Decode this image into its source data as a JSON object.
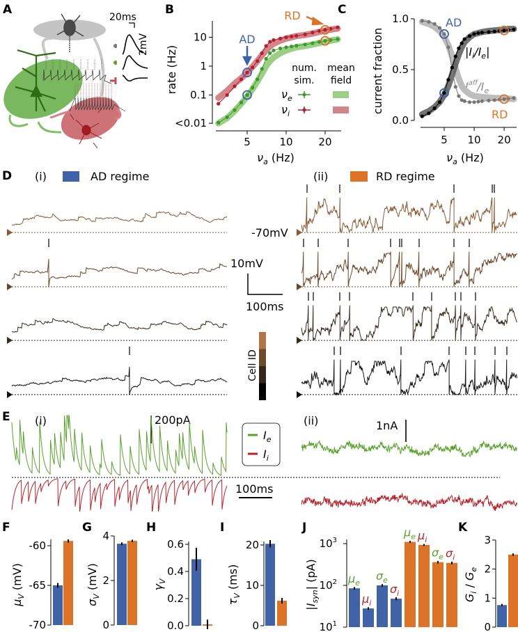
{
  "panel_labels": {
    "A": "A",
    "B": "B",
    "C": "C",
    "D": "D",
    "E": "E",
    "F": "F",
    "G": "G",
    "H": "H",
    "I": "I",
    "J": "J",
    "K": "K"
  },
  "colors": {
    "ad_blue": "#3f63a6",
    "rd_orange": "#dc7326",
    "exc_green": "#5aa02c",
    "inh_red": "#b5242c",
    "gray": "#999999"
  },
  "panel_a": {
    "scale_time": "20ms",
    "scale_volt": "2mV"
  },
  "panel_d": {
    "sub_i": "(i)",
    "sub_ii": "(ii)",
    "ad_label": "AD regime",
    "rd_label": "RD regime",
    "rest_label": "-70mV",
    "scale_volt": "10mV",
    "scale_time": "100ms",
    "cell_id_label": "Cell ID",
    "cell_colors": [
      "#b07848",
      "#6e4a2c",
      "#36271a",
      "#000000"
    ],
    "spike_times_ms": {
      "ad": [
        [],
        [
          106
        ],
        [],
        [
          338
        ]
      ],
      "rd": [
        [
          16,
          110,
          438,
          548,
          554
        ],
        [
          6,
          48,
          134,
          256,
          282,
          288,
          338,
          438,
          482
        ],
        [
          20,
          34,
          110,
          138,
          320,
          374,
          442,
          458,
          500
        ],
        [
          94,
          112,
          286,
          424,
          472,
          498,
          556,
          590
        ]
      ]
    }
  },
  "panel_e": {
    "sub_i": "(i)",
    "sub_ii": "(ii)",
    "scale_ad": "200pA",
    "scale_rd": "1nA",
    "scale_time": "100ms",
    "legend": [
      {
        "sym": "I",
        "sub": "e"
      },
      {
        "sym": "I",
        "sub": "i"
      }
    ]
  },
  "chart_data": [
    {
      "panel": "B",
      "type": "line",
      "xlabel": {
        "sym": "ν",
        "sub": "a",
        "rest": " (Hz)"
      },
      "ylabel": "rate (Hz)",
      "xscale": "log",
      "yscale": "log",
      "xticks": [
        5,
        10,
        20
      ],
      "xtick_labels": [
        "5",
        "10",
        "20"
      ],
      "yticks": [
        0.01,
        0.1,
        1,
        10
      ],
      "ytick_labels": [
        "<0.01",
        "0.1",
        "1",
        "10"
      ],
      "x": [
        3,
        3.5,
        4,
        4.5,
        5,
        5.5,
        6,
        6.5,
        7,
        7.5,
        8,
        9,
        10,
        11,
        12,
        14,
        16,
        18,
        20,
        22,
        25
      ],
      "series": [
        {
          "name": "ν_e num. sim.",
          "kind": "sim",
          "pop": "e",
          "values": [
            0.011,
            0.017,
            0.03,
            0.055,
            0.1,
            0.18,
            0.35,
            0.8,
            1.8,
            2.8,
            3.5,
            4.1,
            4.5,
            4.8,
            5.1,
            5.6,
            6.2,
            6.9,
            7.5,
            8.0,
            8.6
          ]
        },
        {
          "name": "ν_i num. sim.",
          "kind": "sim",
          "pop": "i",
          "values": [
            0.05,
            0.1,
            0.2,
            0.35,
            0.6,
            0.9,
            1.5,
            2.8,
            5.0,
            7.0,
            8.0,
            9.0,
            10.0,
            10.6,
            11.2,
            12.5,
            14.5,
            16.5,
            18.0,
            19.5,
            22.0
          ]
        },
        {
          "name": "ν_e mean field",
          "kind": "mf",
          "pop": "e",
          "values": [
            0.01,
            0.016,
            0.028,
            0.05,
            0.09,
            0.16,
            0.3,
            0.55,
            1.0,
            1.5,
            2.0,
            2.8,
            3.5,
            4.0,
            4.5,
            5.0,
            5.6,
            6.3,
            7.0,
            7.6,
            8.5
          ]
        },
        {
          "name": "ν_i mean field",
          "kind": "mf",
          "pop": "i",
          "values": [
            0.08,
            0.14,
            0.25,
            0.38,
            0.6,
            0.95,
            1.5,
            2.4,
            3.5,
            4.8,
            6.0,
            7.6,
            9.0,
            10.0,
            11.0,
            12.0,
            13.5,
            15.3,
            17.0,
            18.3,
            20.0
          ]
        }
      ],
      "legend": {
        "header_sim": "num.",
        "header_sim2": "sim.",
        "header_mf": "mean",
        "header_mf2": "field",
        "entries": [
          {
            "sym": "ν",
            "sub": "e"
          },
          {
            "sym": "ν",
            "sub": "i"
          }
        ]
      },
      "annotations": [
        {
          "text": "AD",
          "x": 5
        },
        {
          "text": "RD",
          "x": 20
        }
      ]
    },
    {
      "panel": "C",
      "type": "line",
      "xlabel": {
        "sym": "ν",
        "sub": "a",
        "rest": " (Hz)"
      },
      "ylabel": "current fraction",
      "xscale": "log",
      "ylim": [
        0,
        1
      ],
      "xticks": [
        5,
        10,
        20
      ],
      "xtick_labels": [
        "5",
        "10",
        "20"
      ],
      "yticks": [
        0,
        0.5,
        1
      ],
      "ytick_labels": [
        "0.0",
        "0.5",
        "1.0"
      ],
      "x": [
        3,
        3.5,
        4,
        4.5,
        5,
        5.5,
        6,
        6.5,
        7,
        7.5,
        8,
        9,
        10,
        11,
        12,
        14,
        16,
        18,
        20,
        22,
        25
      ],
      "series": [
        {
          "name": "|I_i/I_e| sim",
          "values": [
            0.04,
            0.07,
            0.12,
            0.18,
            0.27,
            0.4,
            0.52,
            0.63,
            0.71,
            0.76,
            0.8,
            0.83,
            0.85,
            0.86,
            0.865,
            0.87,
            0.875,
            0.88,
            0.885,
            0.89,
            0.895
          ]
        },
        {
          "name": "I_e^aff/I_e sim",
          "values": [
            0.98,
            0.97,
            0.95,
            0.91,
            0.85,
            0.72,
            0.5,
            0.33,
            0.24,
            0.2,
            0.19,
            0.18,
            0.18,
            0.185,
            0.19,
            0.195,
            0.2,
            0.205,
            0.21,
            0.215,
            0.22
          ]
        },
        {
          "name": "|I_i/I_e| mean field",
          "values": [
            0.06,
            0.09,
            0.13,
            0.18,
            0.25,
            0.34,
            0.45,
            0.56,
            0.65,
            0.72,
            0.77,
            0.82,
            0.85,
            0.86,
            0.87,
            0.88,
            0.885,
            0.89,
            0.89,
            0.9,
            0.9
          ]
        },
        {
          "name": "I_e^aff/I_e mean field",
          "values": [
            0.97,
            0.95,
            0.92,
            0.88,
            0.82,
            0.74,
            0.63,
            0.51,
            0.41,
            0.34,
            0.3,
            0.26,
            0.24,
            0.235,
            0.23,
            0.225,
            0.22,
            0.22,
            0.215,
            0.215,
            0.21
          ]
        }
      ],
      "labels": {
        "ratio_i": {
          "sym": "|I",
          "sub": "i",
          "mid": "/I",
          "sub2": "e",
          "end": "|"
        },
        "ratio_aff": {
          "sym": "I",
          "sup": "aff",
          "sub": "e",
          "mid": "/I",
          "sub2": "e"
        }
      },
      "annotations": [
        {
          "text": "AD",
          "x": 5
        },
        {
          "text": "RD",
          "x": 20
        }
      ]
    },
    {
      "panel": "F",
      "type": "bar",
      "ylabel": {
        "sym": "μ",
        "sub": "V",
        "rest": " (mV)"
      },
      "ylim": [
        -70,
        -59
      ],
      "yticks": [
        -70,
        -65,
        -60
      ],
      "ytick_labels": [
        "-70",
        "-65",
        "-60"
      ],
      "categories": [
        "AD",
        "RD"
      ],
      "values": [
        -65.0,
        -59.4
      ],
      "errors": [
        0.3,
        0.2
      ]
    },
    {
      "panel": "G",
      "type": "bar",
      "ylabel": {
        "sym": "σ",
        "sub": "V",
        "rest": " (mV)"
      },
      "ylim": [
        0,
        4
      ],
      "yticks": [
        0,
        2,
        4
      ],
      "ytick_labels": [
        "0",
        "2",
        "4"
      ],
      "categories": [
        "AD",
        "RD"
      ],
      "values": [
        3.65,
        3.78
      ],
      "errors": [
        0.06,
        0.05
      ]
    },
    {
      "panel": "H",
      "type": "bar",
      "ylabel": {
        "sym": "γ",
        "sub": "V",
        "rest": ""
      },
      "ylim": [
        0,
        0.62
      ],
      "yticks": [
        0,
        0.2,
        0.4,
        0.6
      ],
      "ytick_labels": [
        "0.0",
        "0.2",
        "0.4",
        "0.6"
      ],
      "categories": [
        "AD",
        "RD"
      ],
      "values": [
        0.49,
        0.01
      ],
      "errors": [
        0.085,
        0.035
      ]
    },
    {
      "panel": "I",
      "type": "bar",
      "ylabel": {
        "sym": "τ",
        "sub": "V",
        "rest": " (ms)"
      },
      "ylim": [
        0,
        21
      ],
      "yticks": [
        0,
        10,
        20
      ],
      "ytick_labels": [
        "0",
        "10",
        "20"
      ],
      "categories": [
        "AD",
        "RD"
      ],
      "values": [
        20.3,
        6.2
      ],
      "errors": [
        0.9,
        0.7
      ]
    },
    {
      "panel": "J",
      "type": "bar",
      "ylabel": {
        "sym": "|I",
        "sub": "syn",
        "rest": "| (pA)"
      },
      "yscale": "log",
      "ylim": [
        10,
        1100
      ],
      "yticks": [
        10,
        100,
        1000
      ],
      "ytick_labels": [
        "10",
        "10",
        "10"
      ],
      "ytick_exps": [
        "1",
        "2",
        "3"
      ],
      "categories": [
        "μe AD",
        "μi AD",
        "σe AD",
        "σi AD",
        "μe RD",
        "μi RD",
        "σe RD",
        "σi RD"
      ],
      "bar_labels": [
        {
          "sym": "μ",
          "sub": "e",
          "pop": "e"
        },
        {
          "sym": "μ",
          "sub": "i",
          "pop": "i"
        },
        {
          "sym": "σ",
          "sub": "e",
          "pop": "e"
        },
        {
          "sym": "σ",
          "sub": "i",
          "pop": "i"
        },
        {
          "sym": "μ",
          "sub": "e",
          "pop": "e"
        },
        {
          "sym": "μ",
          "sub": "i",
          "pop": "i"
        },
        {
          "sym": "σ",
          "sub": "e",
          "pop": "e"
        },
        {
          "sym": "σ",
          "sub": "i",
          "pop": "i"
        }
      ],
      "regimes": [
        "AD",
        "AD",
        "AD",
        "AD",
        "RD",
        "RD",
        "RD",
        "RD"
      ],
      "values": [
        85,
        28,
        100,
        48,
        1100,
        930,
        360,
        345
      ],
      "errors": [
        6,
        2,
        7,
        4,
        60,
        50,
        25,
        25
      ]
    },
    {
      "panel": "K",
      "type": "bar",
      "ylabel": {
        "sym": "G",
        "sub": "i",
        "rest": " / ",
        "sym2": "G",
        "sub2": "e"
      },
      "ylim": [
        0,
        3
      ],
      "yticks": [
        0,
        1,
        2,
        3
      ],
      "ytick_labels": [
        "0",
        "1",
        "2",
        "3"
      ],
      "categories": [
        "AD",
        "RD"
      ],
      "values": [
        0.76,
        2.5
      ],
      "errors": [
        0.04,
        0.04
      ]
    }
  ]
}
